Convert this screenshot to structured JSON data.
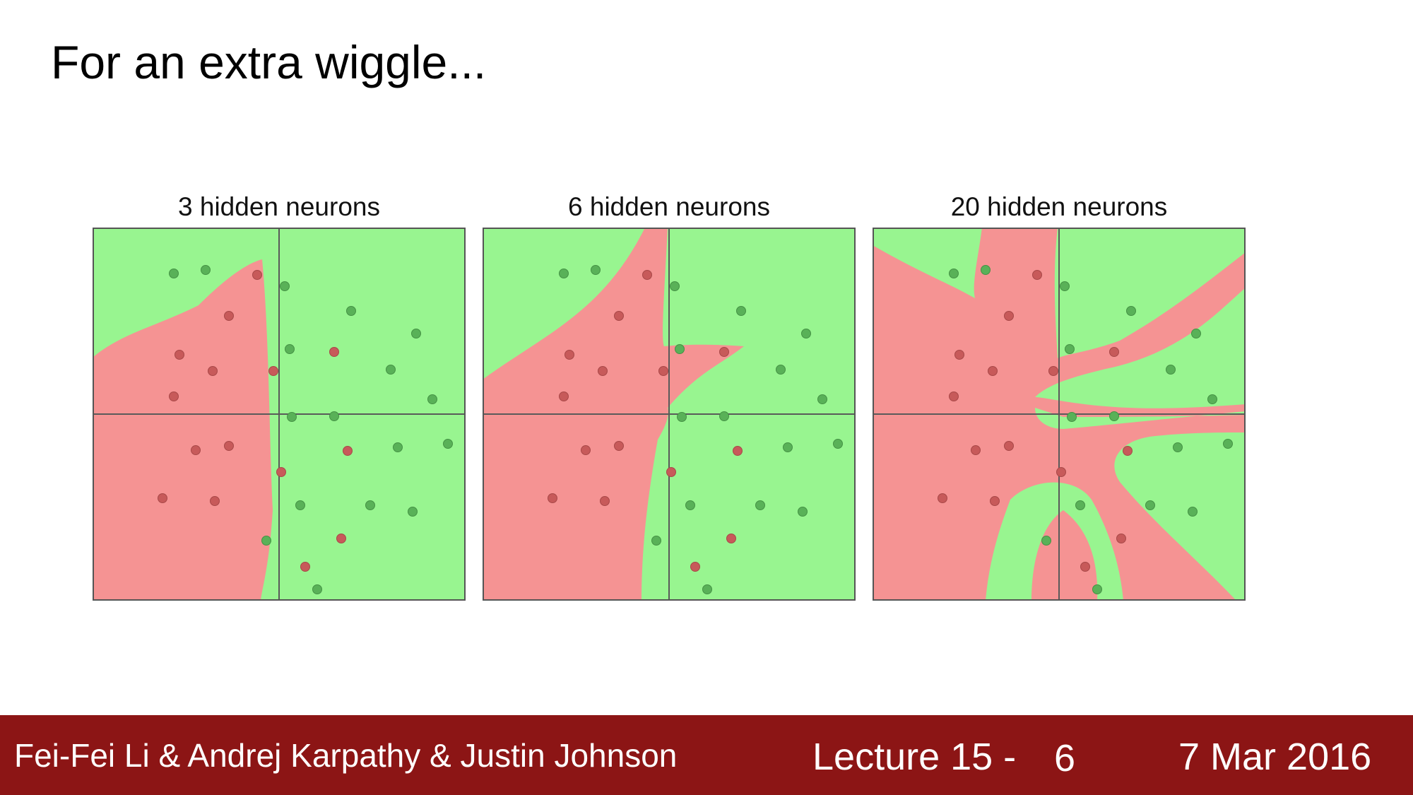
{
  "slide": {
    "title": "For an extra wiggle..."
  },
  "colors": {
    "red_region": "#f59393",
    "green_region": "#98f590",
    "red_point": "#c75a5a",
    "green_point": "#59b158",
    "axis": "#5a5a5a",
    "footer_background": "#8c1515"
  },
  "panels": [
    {
      "title": "3 hidden neurons"
    },
    {
      "title": "6 hidden neurons"
    },
    {
      "title": "20 hidden neurons"
    }
  ],
  "footer": {
    "authors": "Fei-Fei Li & Andrej Karpathy & Justin Johnson",
    "lecture": "Lecture 15 -",
    "page": "6",
    "date": "7 Mar 2016"
  }
}
